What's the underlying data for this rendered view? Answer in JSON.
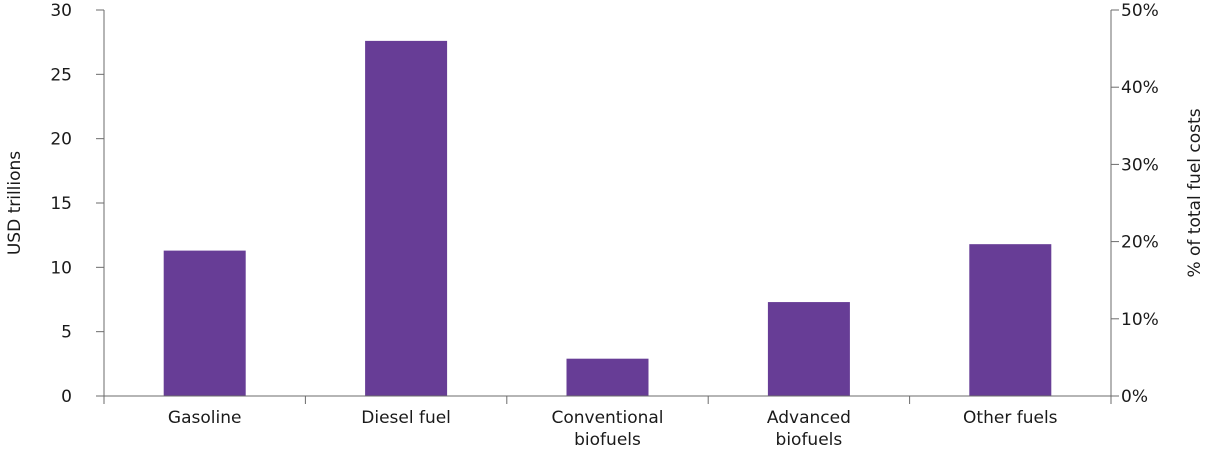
{
  "chart_data": {
    "type": "bar",
    "categories": [
      [
        "Gasoline"
      ],
      [
        "Diesel fuel"
      ],
      [
        "Conventional",
        "biofuels"
      ],
      [
        "Advanced",
        "biofuels"
      ],
      [
        "Other fuels"
      ]
    ],
    "values": [
      11.3,
      27.6,
      2.9,
      7.3,
      11.8
    ],
    "ylabel": "USD trillions",
    "y2label": "% of total fuel costs",
    "ylim": [
      0,
      30
    ],
    "y_ticks": [
      "0",
      "5",
      "10",
      "15",
      "20",
      "25",
      "30"
    ],
    "y2lim": [
      0,
      50
    ],
    "y2_ticks": [
      "0%",
      "10%",
      "20%",
      "30%",
      "40%",
      "50%"
    ],
    "bar_color": "#673d96",
    "grid": false,
    "legend": "none"
  }
}
